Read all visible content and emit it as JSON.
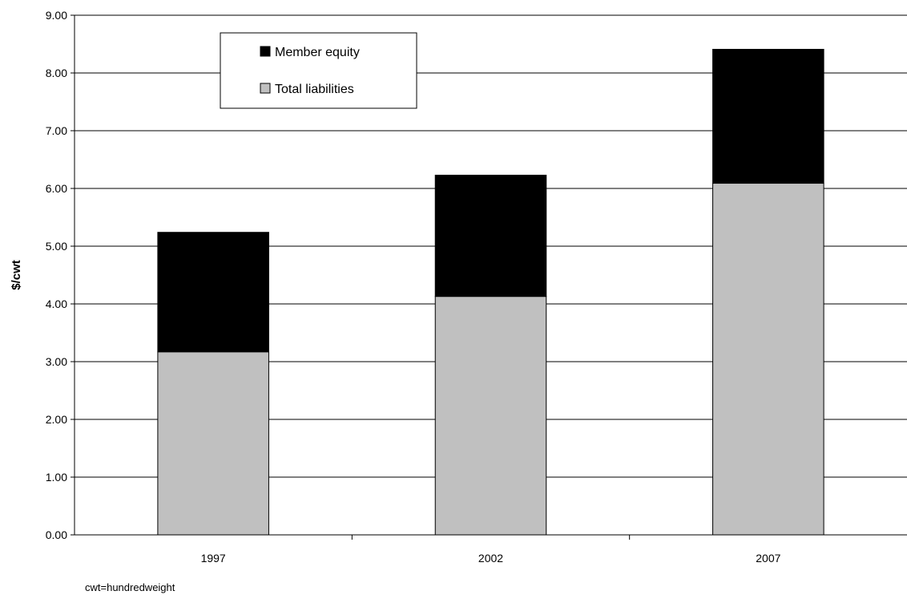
{
  "chart_data": {
    "type": "bar",
    "stacked": true,
    "categories": [
      "1997",
      "2002",
      "2007"
    ],
    "series": [
      {
        "name": "Total liabilities",
        "values": [
          3.17,
          4.13,
          6.09
        ],
        "color": "#c0c0c0"
      },
      {
        "name": "Member equity",
        "values": [
          2.07,
          2.1,
          2.32
        ],
        "color": "#000000"
      }
    ],
    "ylabel": "$/cwt",
    "ylim": [
      0,
      9
    ],
    "yticks": [
      "0.00",
      "1.00",
      "2.00",
      "3.00",
      "4.00",
      "5.00",
      "6.00",
      "7.00",
      "8.00",
      "9.00"
    ],
    "grid": true,
    "legend": {
      "placement": "top-left",
      "entries": [
        "Member equity",
        "Total liabilities"
      ]
    },
    "note": "cwt=hundredweight"
  }
}
